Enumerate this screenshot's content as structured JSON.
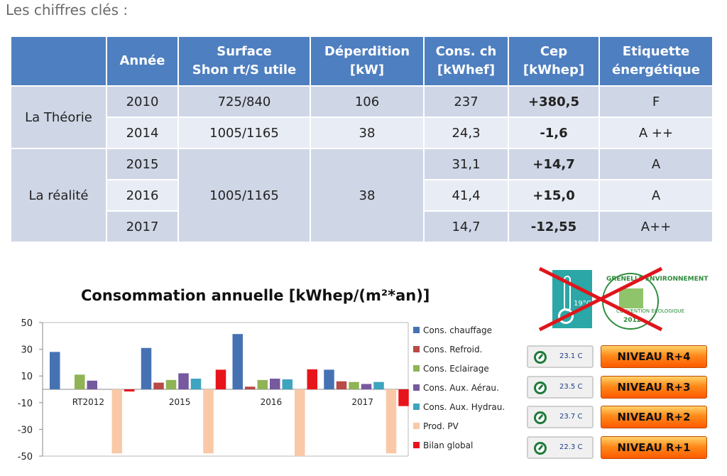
{
  "heading": "Les chiffres clés :",
  "table": {
    "headers": [
      "",
      "Année",
      "Surface\nShon rt/S utile",
      "Déperdition\n[kW]",
      "Cons. ch\n[kWhef]",
      "Cep\n[kWhep]",
      "Etiquette\nénergétique"
    ],
    "groups": [
      {
        "label": "La Théorie",
        "rows": [
          {
            "annee": "2010",
            "surface": "725/840",
            "deperdition": "106",
            "cons": "237",
            "cep": "+380,5",
            "etiquette": "F"
          },
          {
            "annee": "2014",
            "surface": "1005/1165",
            "deperdition": "38",
            "cons": "24,3",
            "cep": "-1,6",
            "etiquette": "A ++"
          }
        ]
      },
      {
        "label": "La réalité",
        "surface": "1005/1165",
        "deperdition": "38",
        "rows": [
          {
            "annee": "2015",
            "cons": "31,1",
            "cep": "+14,7",
            "etiquette": "A"
          },
          {
            "annee": "2016",
            "cons": "41,4",
            "cep": "+15,0",
            "etiquette": "A"
          },
          {
            "annee": "2017",
            "cons": "14,7",
            "cep": "-12,55",
            "etiquette": "A++"
          }
        ]
      }
    ]
  },
  "chart_data": {
    "type": "bar",
    "title": "Consommation annuelle [kWhep/(m²*an)]",
    "categories": [
      "RT2012",
      "2015",
      "2016",
      "2017"
    ],
    "ylim": [
      -50,
      50
    ],
    "yticks": [
      50,
      30,
      10,
      -10,
      -30,
      -50
    ],
    "grid": false,
    "legend_position": "right",
    "series": [
      {
        "name": "Cons. chauffage",
        "color": "#4672b4",
        "values": [
          28,
          31,
          41.4,
          14.7
        ]
      },
      {
        "name": "Cons. Refroid.",
        "color": "#b84a47",
        "values": [
          0,
          5,
          2,
          6
        ]
      },
      {
        "name": "Cons. Eclairage",
        "color": "#8fb355",
        "values": [
          11,
          7,
          7,
          5.5
        ]
      },
      {
        "name": "Cons. Aux. Aérau.",
        "color": "#76599e",
        "values": [
          6.5,
          12,
          8,
          4
        ]
      },
      {
        "name": "Cons. Aux. Hydrau.",
        "color": "#3ea4bf",
        "values": [
          0,
          8,
          7.5,
          5.5
        ]
      },
      {
        "name": "Prod. PV",
        "color": "#f9c9a7",
        "values": [
          -48,
          -48,
          -50,
          -48
        ]
      },
      {
        "name": "Bilan global",
        "color": "#e8141c",
        "values": [
          -1.6,
          14.7,
          15,
          -12.55
        ]
      }
    ]
  },
  "badges": {
    "thermo_text": "19°C",
    "seal_top": "GRENELLE ENVIRONNEMENT",
    "seal_mid": "CONVENTION ÉCOLOGIQUE",
    "seal_year": "2012"
  },
  "levels": [
    {
      "temp": "23.1 C",
      "label": "NIVEAU R+4"
    },
    {
      "temp": "23.5 C",
      "label": "NIVEAU R+3"
    },
    {
      "temp": "23.7 C",
      "label": "NIVEAU R+2"
    },
    {
      "temp": "22.3 C",
      "label": "NIVEAU R+1"
    }
  ],
  "colors": {
    "header_blue": "#4e7fc0",
    "row_dark": "#cfd6e6",
    "row_light": "#e8ecf4",
    "level_orange": "#ff8a1a"
  }
}
